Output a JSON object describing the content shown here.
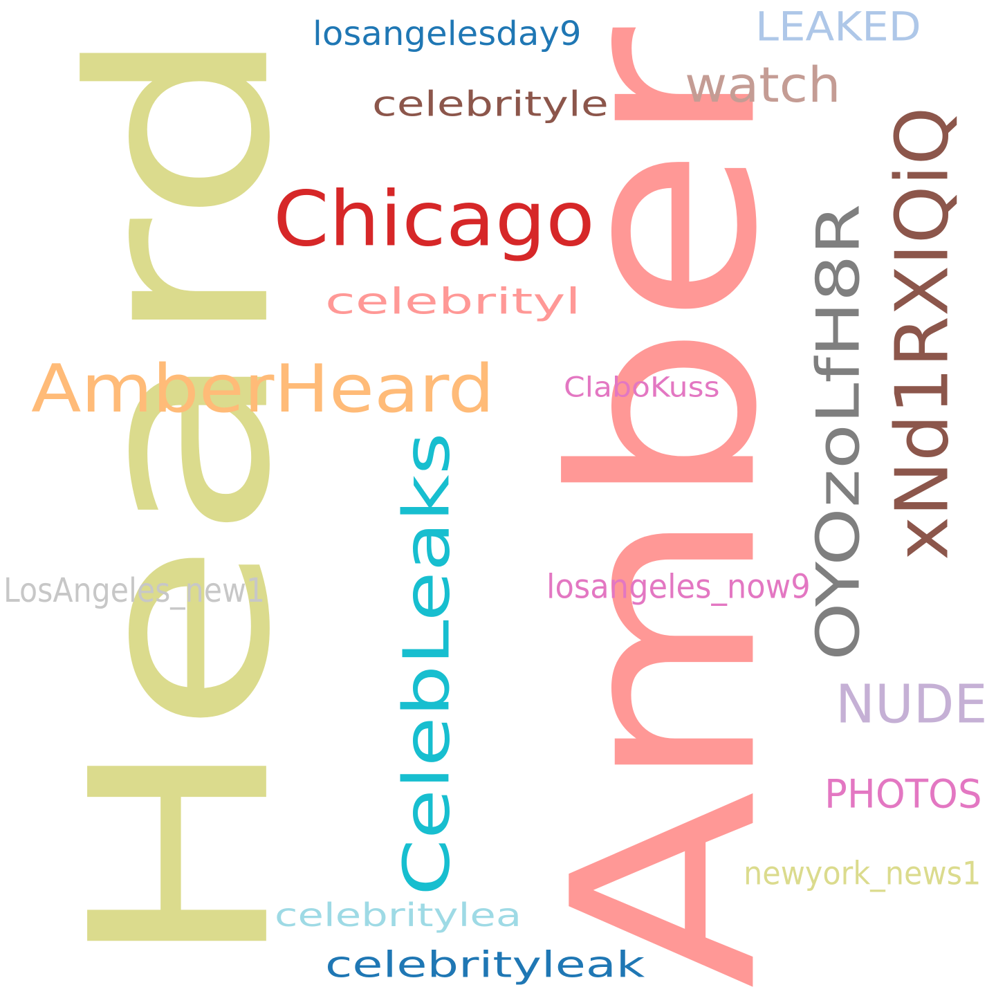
{
  "words": [
    {
      "id": "amber",
      "text": "Amber",
      "color": "#ff9896",
      "rotate": true
    },
    {
      "id": "heard",
      "text": "Heard",
      "color": "#dbdb8d",
      "rotate": true
    },
    {
      "id": "chicago",
      "text": "Chicago",
      "color": "#d62728",
      "rotate": false
    },
    {
      "id": "amberheard",
      "text": "AmberHeard",
      "color": "#ffbb78",
      "rotate": false
    },
    {
      "id": "celebleaks",
      "text": "CelebLeaks",
      "color": "#17becf",
      "rotate": true
    },
    {
      "id": "xnd1",
      "text": "xNd1RXIQiQ",
      "color": "#8c564b",
      "rotate": true
    },
    {
      "id": "oyoz",
      "text": "OYOzoLfH8R",
      "color": "#7f7f7f",
      "rotate": true
    },
    {
      "id": "watch",
      "text": "watch",
      "color": "#c49c94",
      "rotate": false
    },
    {
      "id": "leaked",
      "text": "LEAKED",
      "color": "#aec7e8",
      "rotate": false
    },
    {
      "id": "nude",
      "text": "NUDE",
      "color": "#c5b0d5",
      "rotate": false
    },
    {
      "id": "photos",
      "text": "PHOTOS",
      "color": "#e377c2",
      "rotate": false
    },
    {
      "id": "losangelesday9",
      "text": "losangelesday9",
      "color": "#1f77b4",
      "rotate": false
    },
    {
      "id": "celebrityle",
      "text": "celebrityle",
      "color": "#8c564b",
      "rotate": false
    },
    {
      "id": "celebrityl",
      "text": "celebrityl",
      "color": "#ff9896",
      "rotate": false
    },
    {
      "id": "clabokuss",
      "text": "ClaboKuss",
      "color": "#e377c2",
      "rotate": false
    },
    {
      "id": "losangeles_new1",
      "text": "LosAngeles_new1",
      "color": "#c7c7c7",
      "rotate": false
    },
    {
      "id": "losangeles_now9",
      "text": "losangeles_now9",
      "color": "#e377c2",
      "rotate": false
    },
    {
      "id": "newyork_news1",
      "text": "newyork_news1",
      "color": "#dbdb8d",
      "rotate": false
    },
    {
      "id": "celebritylea",
      "text": "celebritylea",
      "color": "#9edae5",
      "rotate": false
    },
    {
      "id": "celebrityleak",
      "text": "celebrityleak",
      "color": "#1f77b4",
      "rotate": false
    }
  ]
}
